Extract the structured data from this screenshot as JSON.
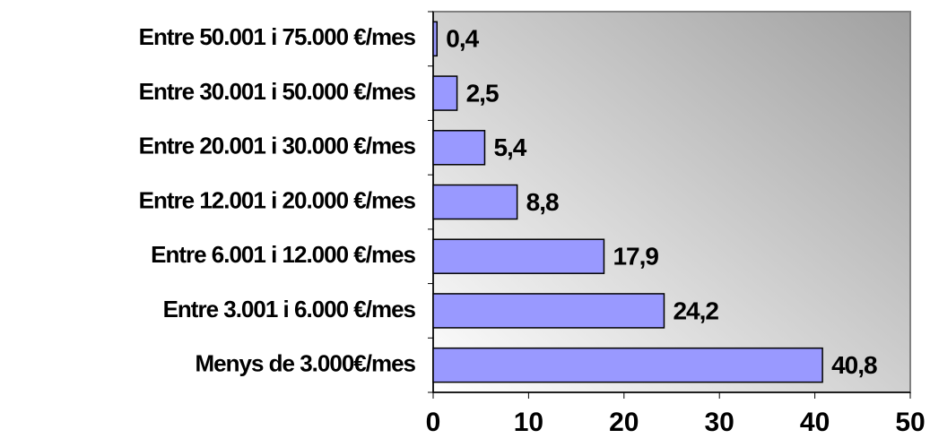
{
  "chart_data": {
    "type": "bar",
    "orientation": "horizontal",
    "categories": [
      "Entre 50.001 i 75.000 €/mes",
      "Entre 30.001 i 50.000 €/mes",
      "Entre 20.001 i 30.000 €/mes",
      "Entre 12.001 i 20.000 €/mes",
      "Entre 6.001 i 12.000 €/mes",
      "Entre 3.001 i 6.000 €/mes",
      "Menys de 3.000€/mes"
    ],
    "values": [
      0.4,
      2.5,
      5.4,
      8.8,
      17.9,
      24.2,
      40.8
    ],
    "value_labels": [
      "0,4",
      "2,5",
      "5,4",
      "8,8",
      "17,9",
      "24,2",
      "40,8"
    ],
    "color": "#9999ff",
    "xlim": [
      0,
      50
    ],
    "xticks": [
      0,
      10,
      20,
      30,
      40,
      50
    ]
  }
}
